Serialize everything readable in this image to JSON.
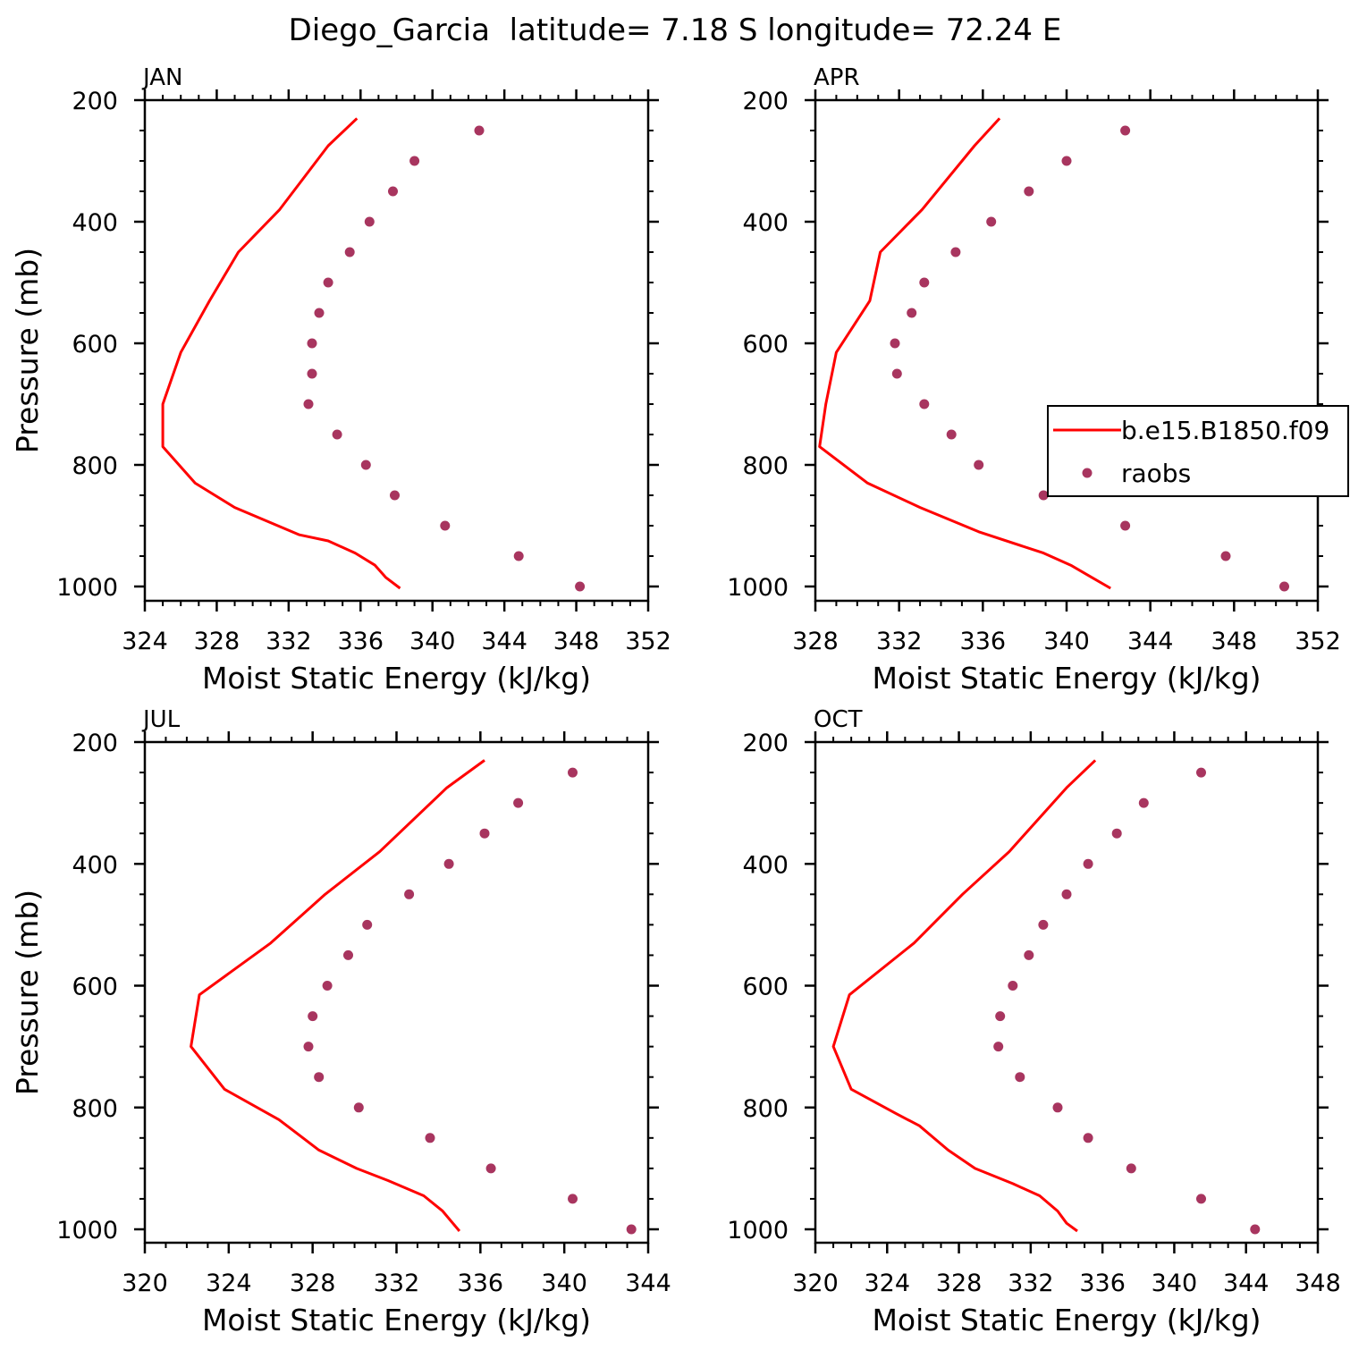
{
  "title": "Diego_Garcia  latitude= 7.18 S longitude= 72.24 E",
  "colors": {
    "model": "#ff0000",
    "obs": "#a8355f",
    "axis": "#000000"
  },
  "chart_data": [
    {
      "type": "line",
      "title": "JAN",
      "xlabel": "Moist Static Energy (kJ/kg)",
      "ylabel": "Pressure (mb)",
      "xlim": [
        324,
        352
      ],
      "xticks": [
        324,
        328,
        332,
        336,
        340,
        344,
        348,
        352
      ],
      "ylim": [
        200,
        1000
      ],
      "yticks": [
        200,
        400,
        600,
        800,
        1000
      ],
      "y_reversed": true,
      "legend": null,
      "series": [
        {
          "name": "b.e15.B1850.f09",
          "kind": "line",
          "x": [
            335.8,
            334.2,
            331.5,
            329.2,
            327.6,
            326.0,
            325.0,
            325.0,
            326.8,
            329.0,
            332.6,
            334.2,
            335.7,
            336.8,
            337.4,
            338.2
          ],
          "y": [
            230,
            275,
            380,
            450,
            530,
            615,
            700,
            770,
            830,
            870,
            915,
            925,
            945,
            965,
            985,
            1003
          ]
        },
        {
          "name": "raobs",
          "kind": "scatter",
          "x": [
            342.6,
            339.0,
            337.8,
            336.5,
            335.4,
            334.2,
            333.7,
            333.3,
            333.3,
            333.1,
            334.7,
            336.3,
            337.9,
            340.7,
            344.8,
            348.2
          ],
          "y": [
            250,
            300,
            350,
            400,
            450,
            500,
            550,
            600,
            650,
            700,
            750,
            800,
            850,
            900,
            950,
            1000
          ]
        }
      ]
    },
    {
      "type": "line",
      "title": "APR",
      "xlabel": "Moist Static Energy (kJ/kg)",
      "ylabel": "",
      "xlim": [
        328,
        352
      ],
      "xticks": [
        328,
        332,
        336,
        340,
        344,
        348,
        352
      ],
      "ylim": [
        200,
        1000
      ],
      "yticks": [
        200,
        400,
        600,
        800,
        1000
      ],
      "y_reversed": true,
      "legend": {
        "position": "right",
        "entries": [
          {
            "label": "b.e15.B1850.f09",
            "kind": "line"
          },
          {
            "label": "raobs",
            "kind": "marker"
          }
        ]
      },
      "series": [
        {
          "name": "b.e15.B1850.f09",
          "kind": "line",
          "x": [
            336.8,
            335.6,
            333.1,
            331.1,
            330.6,
            329.0,
            328.5,
            328.2,
            330.5,
            333.0,
            335.8,
            338.9,
            340.2,
            341.2,
            342.1
          ],
          "y": [
            230,
            275,
            380,
            450,
            530,
            615,
            700,
            770,
            830,
            870,
            910,
            945,
            965,
            985,
            1003
          ]
        },
        {
          "name": "raobs",
          "kind": "scatter",
          "x": [
            342.8,
            340.0,
            338.2,
            336.4,
            334.7,
            333.2,
            332.6,
            331.8,
            331.9,
            333.2,
            334.5,
            335.8,
            338.9,
            342.8,
            347.6,
            350.4
          ],
          "y": [
            250,
            300,
            350,
            400,
            450,
            500,
            550,
            600,
            650,
            700,
            750,
            800,
            850,
            900,
            950,
            1000
          ]
        }
      ]
    },
    {
      "type": "line",
      "title": "JUL",
      "xlabel": "Moist Static Energy (kJ/kg)",
      "ylabel": "Pressure (mb)",
      "xlim": [
        320,
        344
      ],
      "xticks": [
        320,
        324,
        328,
        332,
        336,
        340,
        344
      ],
      "ylim": [
        200,
        1000
      ],
      "yticks": [
        200,
        400,
        600,
        800,
        1000
      ],
      "y_reversed": true,
      "legend": null,
      "series": [
        {
          "name": "b.e15.B1850.f09",
          "kind": "line",
          "x": [
            336.2,
            334.4,
            331.2,
            328.6,
            326.0,
            322.6,
            322.2,
            323.8,
            326.4,
            328.3,
            330.1,
            331.6,
            333.3,
            334.2,
            335.0
          ],
          "y": [
            230,
            275,
            380,
            450,
            530,
            615,
            700,
            770,
            820,
            870,
            900,
            920,
            945,
            970,
            1003
          ]
        },
        {
          "name": "raobs",
          "kind": "scatter",
          "x": [
            340.4,
            337.8,
            336.2,
            334.5,
            332.6,
            330.6,
            329.7,
            328.7,
            328.0,
            327.8,
            328.3,
            330.2,
            333.6,
            336.5,
            340.4,
            343.2
          ],
          "y": [
            250,
            300,
            350,
            400,
            450,
            500,
            550,
            600,
            650,
            700,
            750,
            800,
            850,
            900,
            950,
            1000
          ]
        }
      ]
    },
    {
      "type": "line",
      "title": "OCT",
      "xlabel": "Moist Static Energy (kJ/kg)",
      "ylabel": "",
      "xlim": [
        320,
        348
      ],
      "xticks": [
        320,
        324,
        328,
        332,
        336,
        340,
        344,
        348
      ],
      "ylim": [
        200,
        1000
      ],
      "yticks": [
        200,
        400,
        600,
        800,
        1000
      ],
      "y_reversed": true,
      "legend": null,
      "series": [
        {
          "name": "b.e15.B1850.f09",
          "kind": "line",
          "x": [
            335.6,
            334.0,
            330.8,
            328.2,
            325.5,
            321.9,
            321.0,
            322.0,
            324.5,
            325.8,
            327.4,
            328.9,
            331.0,
            332.5,
            333.5,
            334.0,
            334.6
          ],
          "y": [
            230,
            275,
            380,
            450,
            530,
            615,
            700,
            770,
            810,
            830,
            870,
            900,
            925,
            945,
            970,
            990,
            1003
          ]
        },
        {
          "name": "raobs",
          "kind": "scatter",
          "x": [
            341.5,
            338.3,
            336.8,
            335.2,
            334.0,
            332.7,
            331.9,
            331.0,
            330.3,
            330.2,
            331.4,
            333.5,
            335.2,
            337.6,
            341.5,
            344.5
          ],
          "y": [
            250,
            300,
            350,
            400,
            450,
            500,
            550,
            600,
            650,
            700,
            750,
            800,
            850,
            900,
            950,
            1000
          ]
        }
      ]
    }
  ]
}
